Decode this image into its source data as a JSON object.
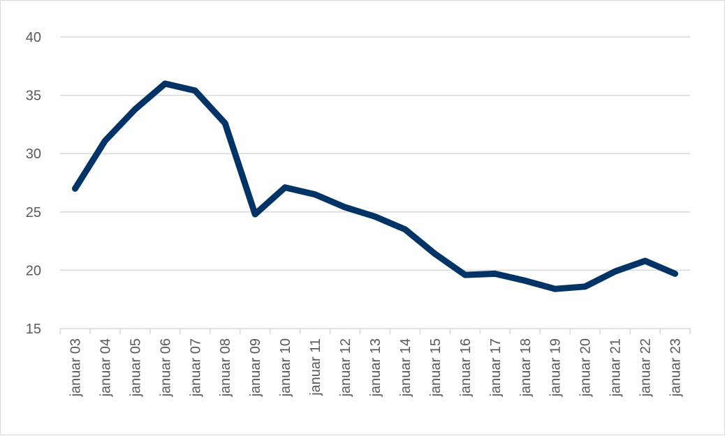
{
  "chart_data": {
    "type": "line",
    "title": "",
    "xlabel": "",
    "ylabel": "",
    "categories": [
      "januar 03",
      "januar 04",
      "januar 05",
      "januar 06",
      "januar 07",
      "januar 08",
      "januar 09",
      "januar 10",
      "januar 11",
      "januar 12",
      "januar 13",
      "januar 14",
      "januar 15",
      "januar 16",
      "januar 17",
      "januar 18",
      "januar 19",
      "januar 20",
      "januar 21",
      "januar 22",
      "januar 23"
    ],
    "series": [
      {
        "name": "",
        "color": "#003366",
        "values": [
          27.0,
          31.1,
          33.8,
          36.0,
          35.4,
          32.6,
          24.8,
          27.1,
          26.5,
          25.4,
          24.6,
          23.5,
          21.4,
          19.6,
          19.7,
          19.1,
          18.4,
          18.6,
          19.9,
          20.8,
          19.7
        ]
      }
    ],
    "ylim": [
      15,
      40
    ],
    "yticks": [
      15,
      20,
      25,
      30,
      35,
      40
    ],
    "grid": true,
    "legend": "none"
  }
}
